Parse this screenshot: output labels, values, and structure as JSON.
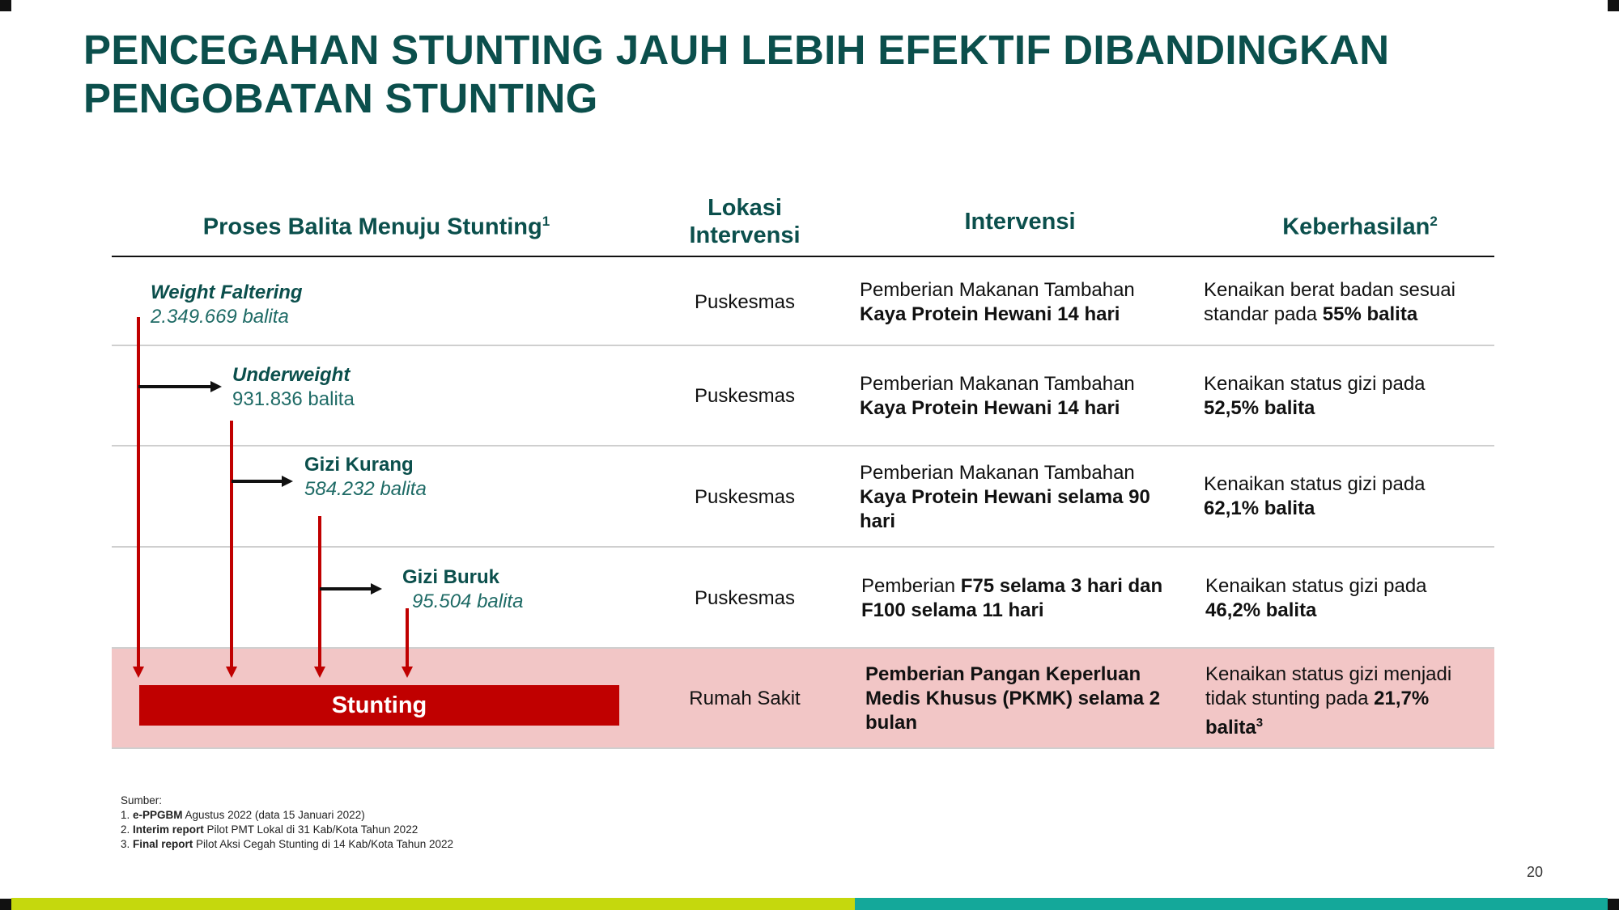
{
  "title": {
    "line1": "PENCEGAHAN STUNTING JAUH LEBIH EFEKTIF DIBANDINGKAN",
    "line2": "PENGOBATAN STUNTING"
  },
  "headers": {
    "proses": "Proses Balita Menuju Stunting",
    "proses_sup": "1",
    "lokasi_line1": "Lokasi",
    "lokasi_line2": "Intervensi",
    "intervensi": "Intervensi",
    "keberhasilan": "Keberhasilan",
    "keberhasilan_sup": "2"
  },
  "stages": [
    {
      "name": "Weight Faltering",
      "count": "2.349.669 balita"
    },
    {
      "name": "Underweight",
      "count": "931.836 balita"
    },
    {
      "name": "Gizi Kurang",
      "count": "584.232 balita"
    },
    {
      "name": "Gizi Buruk",
      "count": "95.504 balita"
    },
    {
      "name": "Stunting"
    }
  ],
  "rows": [
    {
      "lokasi": "Puskesmas",
      "intervensi_l1": "Pemberian Makanan Tambahan",
      "intervensi_b": "Kaya Protein Hewani 14 hari",
      "hasil_l1": "Kenaikan berat badan sesuai",
      "hasil_pre": "standar pada ",
      "hasil_b": "55% balita"
    },
    {
      "lokasi": "Puskesmas",
      "intervensi_l1": "Pemberian Makanan Tambahan",
      "intervensi_b": "Kaya Protein Hewani 14 hari",
      "hasil_l1": "Kenaikan status gizi pada",
      "hasil_b": "52,5% balita"
    },
    {
      "lokasi": "Puskesmas",
      "intervensi_l1": "Pemberian Makanan Tambahan",
      "intervensi_b1": "Kaya Protein Hewani selama 90",
      "intervensi_b2": "hari",
      "hasil_l1": "Kenaikan status gizi pada",
      "hasil_b": "62,1% balita"
    },
    {
      "lokasi": "Puskesmas",
      "intervensi_pre": "Pemberian ",
      "intervensi_b1": "F75 selama 3 hari dan",
      "intervensi_b2": "F100 selama 11 hari",
      "hasil_l1": "Kenaikan status gizi pada",
      "hasil_b": "46,2% balita"
    },
    {
      "lokasi": "Rumah Sakit",
      "intervensi_b1": "Pemberian Pangan Keperluan",
      "intervensi_b2": "Medis Khusus (PKMK) selama 2",
      "intervensi_b3": "bulan",
      "hasil_l1": "Kenaikan status gizi menjadi",
      "hasil_pre": "tidak stunting pada ",
      "hasil_b": "21,7%",
      "hasil_b2": "balita",
      "hasil_sup": "3"
    }
  ],
  "sources": {
    "heading": "Sumber:",
    "items": [
      {
        "num": "1. ",
        "bold": "e-PPGBM",
        "rest": " Agustus 2022 (data 15 Januari  2022)"
      },
      {
        "num": "2. ",
        "bold": "Interim report",
        "rest": " Pilot PMT Lokal di 31 Kab/Kota Tahun 2022"
      },
      {
        "num": "3. ",
        "bold": "Final report",
        "rest": " Pilot Aksi Cegah Stunting di 14 Kab/Kota Tahun 2022"
      }
    ]
  },
  "page_number": "20",
  "colors": {
    "title": "#0b4f4c",
    "arrow": "#c00000",
    "stunting_bar": "#c00000",
    "highlight_row": "#f2c6c6",
    "band_lime": "#c5d80d",
    "band_teal": "#14a89a"
  }
}
